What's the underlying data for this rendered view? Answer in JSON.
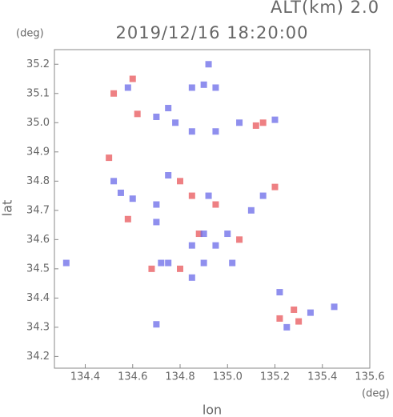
{
  "chart_data": {
    "type": "scatter",
    "title": "2019/12/16 18:20:00",
    "subtitle": "ALT(km)  2.0",
    "x_label": "lon",
    "y_label": "lat",
    "x_unit": "(deg)",
    "y_unit": "(deg)",
    "xlim": [
      134.27,
      135.6
    ],
    "ylim": [
      34.16,
      35.25
    ],
    "xticks": [
      134.4,
      134.6,
      134.8,
      {
        "value": 135,
        "label": "135.0"
      },
      135.2,
      135.4,
      135.6
    ],
    "yticks": [
      34.2,
      34.3,
      34.4,
      34.5,
      34.6,
      34.7,
      34.8,
      34.9,
      {
        "value": 35,
        "label": "35.0"
      },
      35.1,
      35.2
    ],
    "series": [
      {
        "color": "#e8555a",
        "x": [
          134.6,
          134.52,
          134.62,
          135.12,
          135.15,
          134.5,
          134.85,
          134.8,
          135.2,
          134.58,
          134.8,
          134.68,
          135.22,
          135.3,
          135.28,
          134.95,
          134.88,
          135.05
        ],
        "values": [
          35.15,
          35.1,
          35.03,
          34.99,
          35.0,
          34.88,
          34.75,
          34.8,
          34.78,
          34.67,
          34.5,
          34.5,
          34.33,
          34.32,
          34.36,
          34.72,
          34.62,
          34.6
        ]
      },
      {
        "color": "#6a6ae8",
        "x": [
          134.92,
          134.58,
          134.75,
          134.78,
          134.7,
          134.9,
          134.85,
          134.95,
          134.85,
          134.95,
          135.05,
          135.2,
          134.52,
          134.75,
          134.7,
          134.6,
          134.55,
          134.92,
          135.15,
          135.1,
          134.7,
          134.9,
          135.0,
          134.95,
          134.85,
          134.75,
          134.72,
          134.85,
          134.9,
          135.02,
          134.32,
          135.25,
          135.35,
          135.45,
          135.22,
          134.7
        ],
        "values": [
          35.2,
          35.12,
          35.05,
          35.0,
          35.02,
          35.13,
          35.12,
          35.12,
          34.97,
          34.97,
          35.0,
          35.01,
          34.8,
          34.82,
          34.72,
          34.74,
          34.76,
          34.75,
          34.75,
          34.7,
          34.66,
          34.62,
          34.62,
          34.58,
          34.58,
          34.52,
          34.52,
          34.47,
          34.52,
          34.52,
          34.52,
          34.3,
          34.35,
          34.37,
          34.42,
          34.31
        ]
      }
    ]
  }
}
